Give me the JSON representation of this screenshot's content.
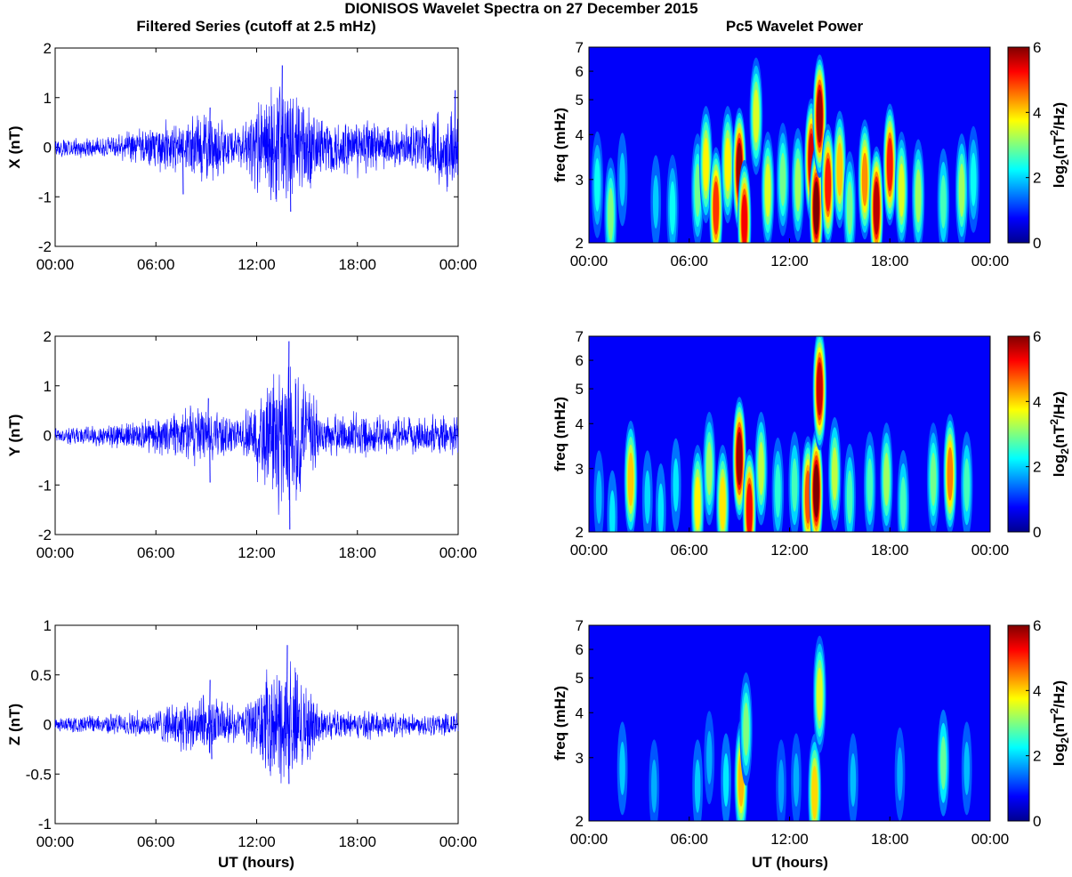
{
  "page_title": "DIONISOS Wavelet Spectra on 27 December 2015",
  "left_column_title": "Filtered Series (cutoff at 2.5 mHz)",
  "right_column_title": "Pc5 Wavelet Power",
  "xlabel": "UT (hours)",
  "x_tick_labels": [
    "00:00",
    "06:00",
    "12:00",
    "18:00",
    "00:00"
  ],
  "colorbar": {
    "label_base": "log",
    "label_sub": "2",
    "label_open": "(nT",
    "label_sup": "2",
    "label_close": "/Hz)",
    "ticks": [
      "0",
      "2",
      "4",
      "6"
    ],
    "range": [
      0,
      6
    ],
    "colormap": "jet"
  },
  "line_color": "#0000ff",
  "chart_data": [
    {
      "type": "line",
      "component": "X",
      "ylabel": "X (nT)",
      "x_range_hours": [
        0,
        24
      ],
      "ylim": [
        -2,
        2
      ],
      "y_ticks": [
        "2",
        "1",
        "0",
        "-1",
        "-2"
      ],
      "approx_envelope": [
        {
          "hour": 0,
          "amp": 0.2
        },
        {
          "hour": 3,
          "amp": 0.2
        },
        {
          "hour": 6,
          "amp": 0.45
        },
        {
          "hour": 9,
          "amp": 0.8
        },
        {
          "hour": 11,
          "amp": 0.35
        },
        {
          "hour": 13.5,
          "amp": 1.6
        },
        {
          "hour": 16,
          "amp": 0.6
        },
        {
          "hour": 18,
          "amp": 0.6
        },
        {
          "hour": 21,
          "amp": 0.45
        },
        {
          "hour": 24,
          "amp": 1.0
        }
      ],
      "peaks": [
        {
          "hour": 13.5,
          "value": 1.65
        },
        {
          "hour": 14.0,
          "value": -1.3
        },
        {
          "hour": 9.2,
          "value": 0.8
        },
        {
          "hour": 7.6,
          "value": -0.95
        },
        {
          "hour": 23.8,
          "value": 1.15
        }
      ]
    },
    {
      "type": "line",
      "component": "Y",
      "ylabel": "Y (nT)",
      "x_range_hours": [
        0,
        24
      ],
      "ylim": [
        -2,
        2
      ],
      "y_ticks": [
        "2",
        "1",
        "0",
        "-1",
        "-2"
      ],
      "approx_envelope": [
        {
          "hour": 0,
          "amp": 0.15
        },
        {
          "hour": 3,
          "amp": 0.25
        },
        {
          "hour": 6,
          "amp": 0.35
        },
        {
          "hour": 9,
          "amp": 0.7
        },
        {
          "hour": 11,
          "amp": 0.3
        },
        {
          "hour": 13.9,
          "amp": 1.85
        },
        {
          "hour": 16,
          "amp": 0.4
        },
        {
          "hour": 18,
          "amp": 0.45
        },
        {
          "hour": 21,
          "amp": 0.35
        },
        {
          "hour": 24,
          "amp": 0.4
        }
      ],
      "peaks": [
        {
          "hour": 13.9,
          "value": 1.9
        },
        {
          "hour": 13.95,
          "value": -1.9
        },
        {
          "hour": 9.1,
          "value": 0.75
        },
        {
          "hour": 9.2,
          "value": -0.95
        }
      ]
    },
    {
      "type": "line",
      "component": "Z",
      "ylabel": "Z (nT)",
      "x_range_hours": [
        0,
        24
      ],
      "ylim": [
        -1,
        1
      ],
      "y_ticks": [
        "1",
        "0.5",
        "0",
        "-0.5",
        "-1"
      ],
      "approx_envelope": [
        {
          "hour": 0,
          "amp": 0.08
        },
        {
          "hour": 3,
          "amp": 0.1
        },
        {
          "hour": 6,
          "amp": 0.15
        },
        {
          "hour": 9,
          "amp": 0.35
        },
        {
          "hour": 11,
          "amp": 0.15
        },
        {
          "hour": 13.8,
          "amp": 0.75
        },
        {
          "hour": 16,
          "amp": 0.15
        },
        {
          "hour": 18,
          "amp": 0.15
        },
        {
          "hour": 21,
          "amp": 0.12
        },
        {
          "hour": 24,
          "amp": 0.12
        }
      ],
      "peaks": [
        {
          "hour": 13.8,
          "value": 0.8
        },
        {
          "hour": 13.9,
          "value": -0.6
        },
        {
          "hour": 9.2,
          "value": 0.45
        },
        {
          "hour": 9.3,
          "value": -0.35
        }
      ]
    },
    {
      "type": "heatmap",
      "component": "X",
      "ylabel": "freq (mHz)",
      "y_scale": "log",
      "ylim_mhz": [
        2,
        7
      ],
      "y_ticks": [
        "7",
        "6",
        "5",
        "4",
        "3",
        "2"
      ],
      "x_range_hours": [
        0,
        24
      ],
      "value_units": "log2(nT^2/Hz)",
      "blobs": [
        {
          "hour": 1.3,
          "freq": 2.4,
          "power": 2.6
        },
        {
          "hour": 0.5,
          "freq": 2.9,
          "power": 1.8
        },
        {
          "hour": 2.0,
          "freq": 3.0,
          "power": 1.4
        },
        {
          "hour": 4.0,
          "freq": 2.6,
          "power": 1.4
        },
        {
          "hour": 5.0,
          "freq": 2.5,
          "power": 1.8
        },
        {
          "hour": 6.5,
          "freq": 2.8,
          "power": 2.5
        },
        {
          "hour": 7.0,
          "freq": 3.3,
          "power": 3.5
        },
        {
          "hour": 7.6,
          "freq": 2.5,
          "power": 4.8
        },
        {
          "hour": 8.3,
          "freq": 3.3,
          "power": 3.5
        },
        {
          "hour": 9.0,
          "freq": 3.2,
          "power": 5.8
        },
        {
          "hour": 9.3,
          "freq": 2.3,
          "power": 5.2
        },
        {
          "hour": 10.0,
          "freq": 4.5,
          "power": 3.2
        },
        {
          "hour": 10.7,
          "freq": 2.8,
          "power": 3.2
        },
        {
          "hour": 11.6,
          "freq": 3.0,
          "power": 2.5
        },
        {
          "hour": 12.5,
          "freq": 2.9,
          "power": 2.8
        },
        {
          "hour": 13.3,
          "freq": 3.4,
          "power": 5.4
        },
        {
          "hour": 13.6,
          "freq": 2.5,
          "power": 6.0
        },
        {
          "hour": 13.8,
          "freq": 4.5,
          "power": 5.8
        },
        {
          "hour": 14.3,
          "freq": 2.9,
          "power": 5.0
        },
        {
          "hour": 15.0,
          "freq": 3.2,
          "power": 3.8
        },
        {
          "hour": 15.6,
          "freq": 2.5,
          "power": 2.5
        },
        {
          "hour": 16.5,
          "freq": 3.0,
          "power": 4.2
        },
        {
          "hour": 17.2,
          "freq": 2.5,
          "power": 5.6
        },
        {
          "hour": 18.0,
          "freq": 3.3,
          "power": 5.0
        },
        {
          "hour": 18.7,
          "freq": 2.8,
          "power": 3.2
        },
        {
          "hour": 19.7,
          "freq": 2.7,
          "power": 2.8
        },
        {
          "hour": 21.2,
          "freq": 2.6,
          "power": 2.2
        },
        {
          "hour": 22.3,
          "freq": 2.8,
          "power": 2.8
        },
        {
          "hour": 23.0,
          "freq": 3.0,
          "power": 1.8
        }
      ]
    },
    {
      "type": "heatmap",
      "component": "Y",
      "ylabel": "freq (mHz)",
      "y_scale": "log",
      "ylim_mhz": [
        2,
        7
      ],
      "y_ticks": [
        "7",
        "6",
        "5",
        "4",
        "3",
        "2"
      ],
      "x_range_hours": [
        0,
        24
      ],
      "value_units": "log2(nT^2/Hz)",
      "blobs": [
        {
          "hour": 0.6,
          "freq": 2.5,
          "power": 1.3
        },
        {
          "hour": 1.4,
          "freq": 2.2,
          "power": 1.6
        },
        {
          "hour": 2.5,
          "freq": 2.8,
          "power": 3.8
        },
        {
          "hour": 3.5,
          "freq": 2.5,
          "power": 1.5
        },
        {
          "hour": 4.3,
          "freq": 2.3,
          "power": 1.6
        },
        {
          "hour": 5.2,
          "freq": 2.7,
          "power": 1.6
        },
        {
          "hour": 6.5,
          "freq": 2.4,
          "power": 3.5
        },
        {
          "hour": 7.2,
          "freq": 3.0,
          "power": 2.8
        },
        {
          "hour": 8.0,
          "freq": 2.4,
          "power": 3.6
        },
        {
          "hour": 9.0,
          "freq": 3.2,
          "power": 5.8
        },
        {
          "hour": 9.6,
          "freq": 2.3,
          "power": 5.2
        },
        {
          "hour": 10.3,
          "freq": 3.0,
          "power": 3.0
        },
        {
          "hour": 11.3,
          "freq": 2.6,
          "power": 2.0
        },
        {
          "hour": 12.3,
          "freq": 2.7,
          "power": 2.2
        },
        {
          "hour": 13.1,
          "freq": 2.5,
          "power": 4.6
        },
        {
          "hour": 13.6,
          "freq": 2.6,
          "power": 6.0
        },
        {
          "hour": 13.8,
          "freq": 5.0,
          "power": 5.5
        },
        {
          "hour": 14.7,
          "freq": 2.9,
          "power": 3.0
        },
        {
          "hour": 15.6,
          "freq": 2.5,
          "power": 2.2
        },
        {
          "hour": 16.8,
          "freq": 2.7,
          "power": 2.2
        },
        {
          "hour": 17.8,
          "freq": 2.8,
          "power": 2.8
        },
        {
          "hour": 18.8,
          "freq": 2.4,
          "power": 2.2
        },
        {
          "hour": 20.6,
          "freq": 2.8,
          "power": 2.5
        },
        {
          "hour": 21.6,
          "freq": 2.9,
          "power": 4.3
        },
        {
          "hour": 22.6,
          "freq": 2.7,
          "power": 2.2
        }
      ]
    },
    {
      "type": "heatmap",
      "component": "Z",
      "ylabel": "freq (mHz)",
      "y_scale": "log",
      "ylim_mhz": [
        2,
        7
      ],
      "y_ticks": [
        "7",
        "6",
        "5",
        "4",
        "3",
        "2"
      ],
      "x_range_hours": [
        0,
        24
      ],
      "value_units": "log2(nT^2/Hz)",
      "blobs": [
        {
          "hour": 2.0,
          "freq": 2.8,
          "power": 1.4
        },
        {
          "hour": 3.9,
          "freq": 2.5,
          "power": 1.2
        },
        {
          "hour": 6.5,
          "freq": 2.5,
          "power": 1.4
        },
        {
          "hour": 7.2,
          "freq": 3.0,
          "power": 1.2
        },
        {
          "hour": 8.2,
          "freq": 2.6,
          "power": 1.6
        },
        {
          "hour": 9.1,
          "freq": 2.6,
          "power": 3.9
        },
        {
          "hour": 9.4,
          "freq": 3.6,
          "power": 2.6
        },
        {
          "hour": 11.5,
          "freq": 2.5,
          "power": 1.1
        },
        {
          "hour": 12.4,
          "freq": 2.6,
          "power": 1.2
        },
        {
          "hour": 13.5,
          "freq": 2.4,
          "power": 3.7
        },
        {
          "hour": 13.8,
          "freq": 4.5,
          "power": 3.2
        },
        {
          "hour": 15.8,
          "freq": 2.6,
          "power": 1.3
        },
        {
          "hour": 18.6,
          "freq": 2.7,
          "power": 1.2
        },
        {
          "hour": 21.2,
          "freq": 2.9,
          "power": 2.4
        },
        {
          "hour": 22.6,
          "freq": 2.8,
          "power": 1.3
        }
      ]
    }
  ]
}
